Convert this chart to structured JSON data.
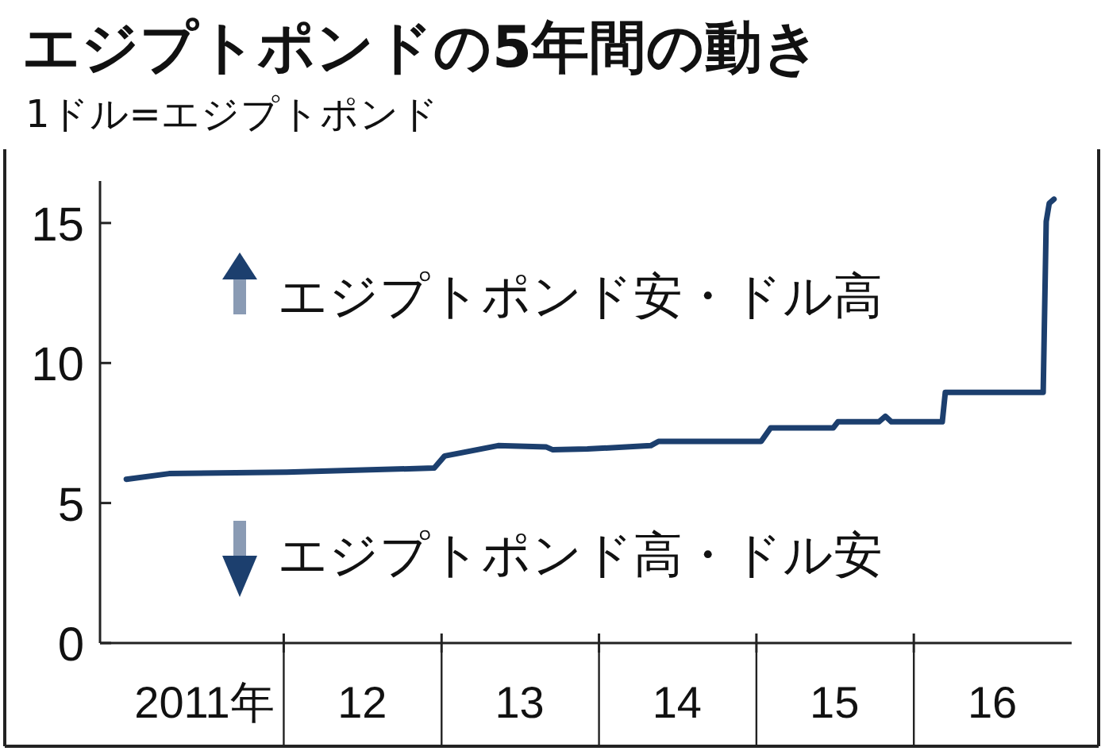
{
  "chart_data": {
    "type": "line",
    "title": "エジプトポンドの5年間の動き",
    "subtitle": "1ドル=エジプトポンド",
    "x": [
      "2011-01-01",
      "2011-04-10",
      "2012-01-08",
      "2012-12-15",
      "2013-01-08",
      "2013-02-18",
      "2013-05-12",
      "2013-09-01",
      "2013-09-16",
      "2013-12-05",
      "2014-05-01",
      "2014-05-19",
      "2015-01-12",
      "2015-02-03",
      "2015-06-28",
      "2015-07-09",
      "2015-10-12",
      "2015-10-27",
      "2015-11-10",
      "2016-03-07",
      "2016-03-14",
      "2016-10-27",
      "2016-11-03",
      "2016-11-10",
      "2016-11-21"
    ],
    "series": [
      {
        "color": "#1c3f6e",
        "values": [
          5.85,
          6.05,
          6.1,
          6.25,
          6.68,
          6.8,
          7.05,
          7.0,
          6.9,
          6.93,
          7.05,
          7.2,
          7.2,
          7.68,
          7.68,
          7.9,
          7.9,
          8.1,
          7.9,
          7.9,
          8.95,
          8.95,
          15.05,
          15.7,
          15.85
        ]
      }
    ],
    "xlim": [
      "2010-11",
      "2017-01"
    ],
    "xticks": [
      {
        "value": "2011-07-01",
        "label": "2011年"
      },
      {
        "value": "2012-01-01",
        "label": null
      },
      {
        "value": "2012-07-01",
        "label": "12"
      },
      {
        "value": "2013-01-01",
        "label": null
      },
      {
        "value": "2013-07-01",
        "label": "13"
      },
      {
        "value": "2014-01-01",
        "label": null
      },
      {
        "value": "2014-07-01",
        "label": "14"
      },
      {
        "value": "2015-01-01",
        "label": null
      },
      {
        "value": "2015-07-01",
        "label": "15"
      },
      {
        "value": "2016-01-01",
        "label": null
      },
      {
        "value": "2016-07-01",
        "label": "16"
      }
    ],
    "ylim": [
      0,
      16.5
    ],
    "yticks": [
      0,
      5,
      10,
      15
    ],
    "annotations": [
      "エジプトポンド安・ドル高",
      "エジプトポンド高・ドル安"
    ],
    "grid": false
  }
}
